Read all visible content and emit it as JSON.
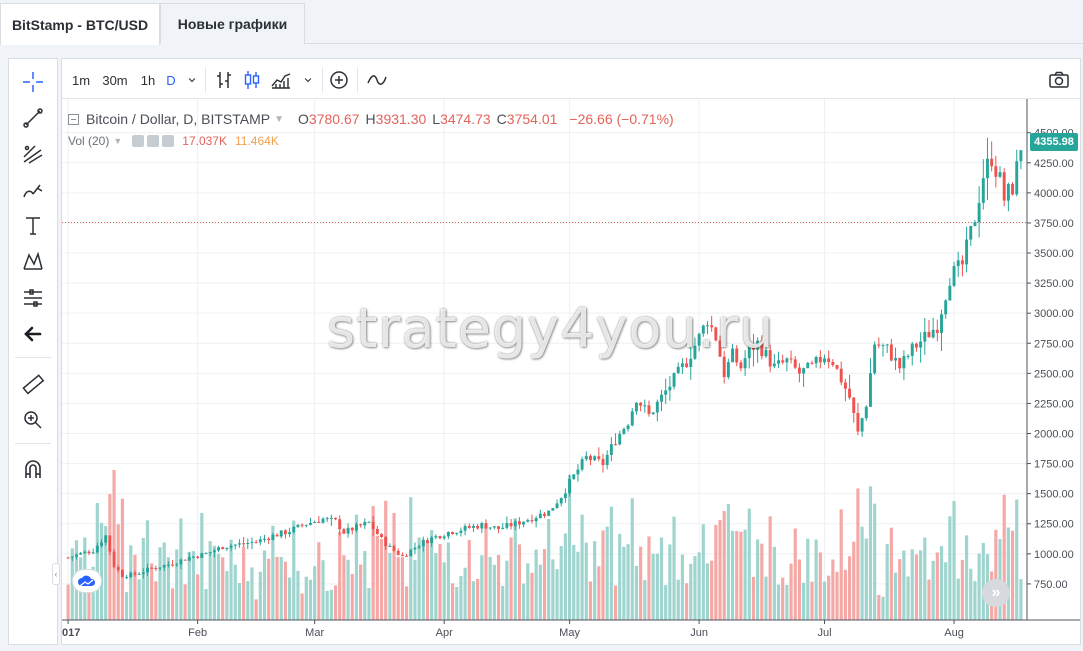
{
  "tabs": [
    {
      "label": "BitStamp - BTC/USD",
      "active": true
    },
    {
      "label": "Новые графики",
      "active": false
    }
  ],
  "toolbar": {
    "intervals": [
      "1m",
      "30m",
      "1h",
      "D"
    ],
    "active_interval": "D",
    "icons": [
      "chevron-down-icon",
      "bar-chart-icon",
      "candles-icon",
      "area-chart-icon",
      "chevron-down-icon",
      "add-indicator-icon",
      "compare-icon",
      "camera-icon"
    ]
  },
  "left_tools": [
    "crosshair-icon",
    "trend-line-icon",
    "fib-icon",
    "brush-icon",
    "text-icon",
    "pattern-icon",
    "measure-icon",
    "back-arrow-icon",
    "ruler-icon",
    "zoom-in-icon",
    "magnet-icon"
  ],
  "legend": {
    "symbol": "Bitcoin / Dollar, D, BITSTAMP",
    "o_label": "O",
    "o_value": "3780.67",
    "h_label": "H",
    "h_value": "3931.30",
    "l_label": "L",
    "l_value": "3474.73",
    "c_label": "C",
    "c_value": "3754.01",
    "change": "−26.66 (−0.71%)"
  },
  "volume_legend": {
    "label": "Vol (20)",
    "value1": "17.037K",
    "value2": "11.464K"
  },
  "last_price": "4355.98",
  "watermark": "strategy4you.ru",
  "colors": {
    "up": "#26a69a",
    "down": "#ef5350",
    "vol_up": "#9fd5ce",
    "vol_down": "#f4a9a7",
    "accent": "#2962ff"
  },
  "chart_data": {
    "type": "candlestick",
    "symbol": "Bitcoin / Dollar, D, BITSTAMP",
    "y_axis_ticks": [
      750,
      1000,
      1250,
      1500,
      1750,
      2000,
      2250,
      2500,
      2750,
      3000,
      3250,
      3500,
      3750,
      4000,
      4250,
      4500
    ],
    "x_axis_labels": [
      "2017",
      "Feb",
      "Mar",
      "Apr",
      "May",
      "Jun",
      "Jul",
      "Aug"
    ],
    "y_range": [
      450,
      4780
    ],
    "horizontal_line": 3754,
    "close_anchors": [
      [
        0,
        970
      ],
      [
        6,
        1030
      ],
      [
        9,
        1150
      ],
      [
        11,
        900
      ],
      [
        13,
        820
      ],
      [
        16,
        830
      ],
      [
        20,
        880
      ],
      [
        25,
        920
      ],
      [
        29,
        970
      ],
      [
        33,
        1000
      ],
      [
        37,
        1060
      ],
      [
        41,
        1080
      ],
      [
        45,
        1100
      ],
      [
        49,
        1150
      ],
      [
        53,
        1190
      ],
      [
        57,
        1250
      ],
      [
        61,
        1290
      ],
      [
        64,
        1270
      ],
      [
        66,
        1180
      ],
      [
        69,
        1220
      ],
      [
        72,
        1260
      ],
      [
        75,
        1120
      ],
      [
        77,
        1050
      ],
      [
        80,
        980
      ],
      [
        84,
        1080
      ],
      [
        87,
        1130
      ],
      [
        91,
        1180
      ],
      [
        95,
        1210
      ],
      [
        99,
        1240
      ],
      [
        103,
        1210
      ],
      [
        107,
        1250
      ],
      [
        111,
        1300
      ],
      [
        115,
        1350
      ],
      [
        118,
        1480
      ],
      [
        122,
        1700
      ],
      [
        124,
        1800
      ],
      [
        128,
        1750
      ],
      [
        131,
        1950
      ],
      [
        134,
        2100
      ],
      [
        136,
        2300
      ],
      [
        139,
        2150
      ],
      [
        142,
        2300
      ],
      [
        145,
        2450
      ],
      [
        148,
        2600
      ],
      [
        151,
        2800
      ],
      [
        153,
        2950
      ],
      [
        155,
        2800
      ],
      [
        157,
        2500
      ],
      [
        159,
        2650
      ],
      [
        161,
        2550
      ],
      [
        163,
        2700
      ],
      [
        165,
        2750
      ],
      [
        167,
        2650
      ],
      [
        169,
        2550
      ],
      [
        172,
        2600
      ],
      [
        175,
        2500
      ],
      [
        178,
        2550
      ],
      [
        181,
        2650
      ],
      [
        183,
        2600
      ],
      [
        185,
        2450
      ],
      [
        187,
        2300
      ],
      [
        189,
        2000
      ],
      [
        191,
        2250
      ],
      [
        193,
        2750
      ],
      [
        196,
        2700
      ],
      [
        199,
        2550
      ],
      [
        202,
        2700
      ],
      [
        205,
        2800
      ],
      [
        208,
        2900
      ],
      [
        211,
        3300
      ],
      [
        214,
        3400
      ],
      [
        217,
        3800
      ],
      [
        219,
        4150
      ],
      [
        221,
        4300
      ],
      [
        223,
        4100
      ],
      [
        224,
        3950
      ],
      [
        226,
        4050
      ],
      [
        228,
        4355
      ]
    ],
    "volume_axis_ticks": [
      750,
      1000,
      1250,
      1500
    ]
  }
}
